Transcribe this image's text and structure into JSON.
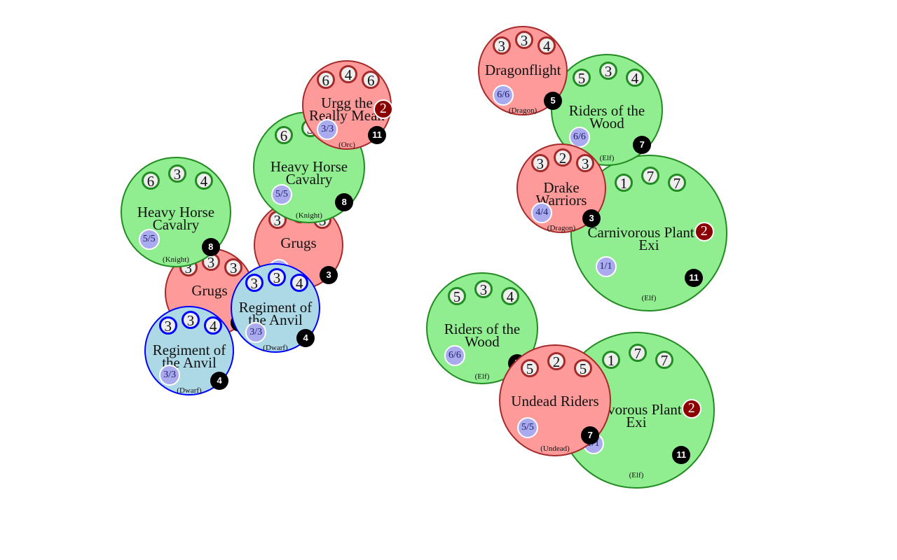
{
  "colors": {
    "orc_red_fill": "#ff9a9a",
    "orc_red_border": "#a52a2a",
    "elf_green_fill": "#90ee90",
    "elf_green_border": "#228b22",
    "dwarf_blue_fill": "#add8e6",
    "dwarf_blue_border": "#0000ff",
    "hp_fill": "#aaaaee",
    "cost_fill": "#000000",
    "badge_fill": "#8b0000"
  },
  "units": [
    {
      "id": "carnivorous-plant-1",
      "name": "Carnivorous Plant of Exi",
      "faction": "green",
      "stats": [
        "1",
        "7",
        "7"
      ],
      "hp": "1/1",
      "cost": "11",
      "race": "(Elf)",
      "badge": "2"
    },
    {
      "id": "carnivorous-plant-2",
      "name": "Carnivorous Plant of Exi",
      "faction": "green",
      "stats": [
        "1",
        "7",
        "7"
      ],
      "hp": "1/1",
      "cost": "11",
      "race": "(Elf)",
      "badge": "2"
    },
    {
      "id": "grugs-1",
      "name": "Grugs",
      "faction": "red",
      "stats": [
        "3",
        "3",
        "3"
      ],
      "hp": "3/3",
      "cost": "3",
      "race": "(Orc)"
    },
    {
      "id": "grugs-2",
      "name": "Grugs",
      "faction": "red",
      "stats": [
        "3",
        "3",
        "3"
      ],
      "hp": "3/3",
      "cost": "3",
      "race": "(Orc)"
    },
    {
      "id": "heavy-horse-cavalry-1",
      "name": "Heavy Horse Cavalry",
      "faction": "green",
      "stats": [
        "6",
        "3",
        "4"
      ],
      "hp": "5/5",
      "cost": "8",
      "race": "(Knight)"
    },
    {
      "id": "heavy-horse-cavalry-2",
      "name": "Heavy Horse Cavalry",
      "faction": "green",
      "stats": [
        "6",
        "3",
        "4"
      ],
      "hp": "5/5",
      "cost": "8",
      "race": "(Knight)"
    },
    {
      "id": "urgg-the-really-mean",
      "name": "Urgg the Really Mean",
      "faction": "red",
      "stats": [
        "6",
        "4",
        "6"
      ],
      "hp": "3/3",
      "cost": "11",
      "race": "(Orc)",
      "badge": "2"
    },
    {
      "id": "regiment-of-the-anvil-1",
      "name": "Regiment of the Anvil",
      "faction": "blue",
      "stats": [
        "3",
        "3",
        "4"
      ],
      "hp": "3/3",
      "cost": "4",
      "race": "(Dwarf)"
    },
    {
      "id": "regiment-of-the-anvil-2",
      "name": "Regiment of the Anvil",
      "faction": "blue",
      "stats": [
        "3",
        "3",
        "4"
      ],
      "hp": "3/3",
      "cost": "4",
      "race": "(Dwarf)"
    },
    {
      "id": "riders-of-the-wood-1",
      "name": "Riders of the Wood",
      "faction": "green",
      "stats": [
        "5",
        "3",
        "4"
      ],
      "hp": "6/6",
      "cost": "7",
      "race": "(Elf)"
    },
    {
      "id": "riders-of-the-wood-2",
      "name": "Riders of the Wood",
      "faction": "green",
      "stats": [
        "5",
        "3",
        "4"
      ],
      "hp": "6/6",
      "cost": "7",
      "race": "(Elf)"
    },
    {
      "id": "dragonflight",
      "name": "Dragonflight",
      "faction": "red",
      "stats": [
        "3",
        "3",
        "4"
      ],
      "hp": "6/6",
      "cost": "5",
      "race": "(Dragon)"
    },
    {
      "id": "drake-warriors",
      "name": "Drake Warriors",
      "faction": "red",
      "stats": [
        "3",
        "2",
        "3"
      ],
      "hp": "4/4",
      "cost": "3",
      "race": "(Dragon)"
    },
    {
      "id": "undead-riders",
      "name": "Undead Riders",
      "faction": "red",
      "stats": [
        "5",
        "2",
        "5"
      ],
      "hp": "5/5",
      "cost": "7",
      "race": "(Undead)"
    }
  ]
}
